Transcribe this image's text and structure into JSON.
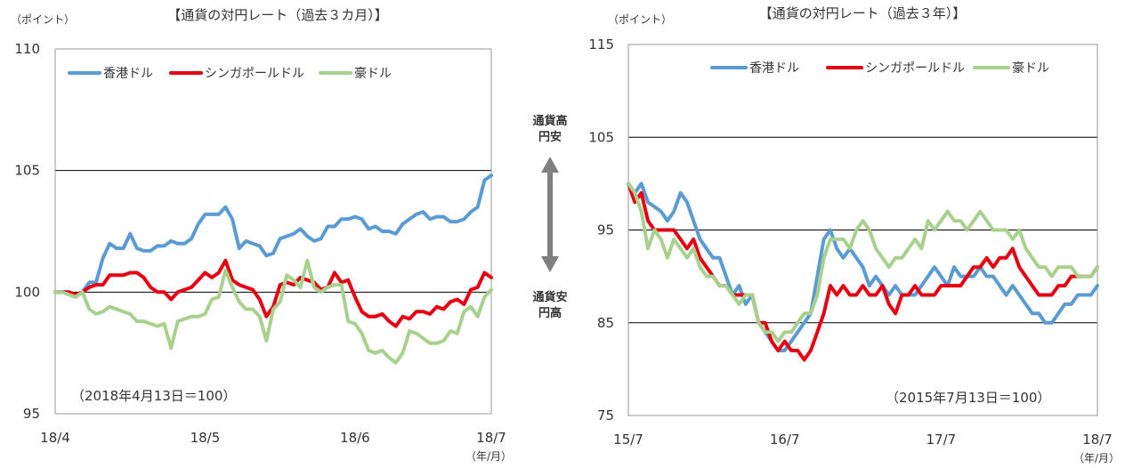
{
  "center": {
    "top_label_line1": "通貨高",
    "top_label_line2": "円安",
    "bottom_label_line1": "通貨安",
    "bottom_label_line2": "円高",
    "arrow_color": "#808080"
  },
  "chart_data": [
    {
      "type": "line",
      "title": "【通貨の対円レート（過去３カ月）】",
      "ylabel": "（ポイント）",
      "unit_label": "（年/月）",
      "annotation": "（2018年4月13日＝100）",
      "xlim": [
        0,
        64
      ],
      "ylim": [
        95,
        110
      ],
      "y_ticks": [
        95,
        100,
        105,
        110
      ],
      "x_ticks": [
        {
          "x": 0,
          "label": "18/4"
        },
        {
          "x": 22,
          "label": "18/5"
        },
        {
          "x": 44,
          "label": "18/6"
        },
        {
          "x": 64,
          "label": "18/7"
        }
      ],
      "grid": "horizontal",
      "legend_position": "top-left",
      "series": [
        {
          "name": "香港ドル",
          "color": "#5b9bd5",
          "values": [
            100.0,
            100.0,
            100.0,
            99.8,
            100.0,
            100.4,
            100.4,
            101.4,
            102.0,
            101.8,
            101.8,
            102.4,
            101.8,
            101.7,
            101.7,
            101.9,
            101.9,
            102.1,
            102.0,
            102.0,
            102.2,
            102.8,
            103.2,
            103.2,
            103.2,
            103.5,
            103.0,
            101.8,
            102.1,
            102.0,
            101.9,
            101.5,
            101.6,
            102.2,
            102.3,
            102.4,
            102.6,
            102.3,
            102.1,
            102.2,
            102.7,
            102.7,
            103.0,
            103.0,
            103.1,
            103.0,
            102.6,
            102.7,
            102.5,
            102.5,
            102.4,
            102.8,
            103.0,
            103.2,
            103.3,
            103.0,
            103.1,
            103.1,
            102.9,
            102.9,
            103.0,
            103.3,
            103.5,
            104.6,
            104.8
          ]
        },
        {
          "name": "シンガポールドル",
          "color": "#e60012",
          "values": [
            100.0,
            100.0,
            100.0,
            99.9,
            100.0,
            100.2,
            100.3,
            100.3,
            100.7,
            100.7,
            100.7,
            100.8,
            100.8,
            100.6,
            100.2,
            100.0,
            100.0,
            99.7,
            100.0,
            100.1,
            100.2,
            100.5,
            100.8,
            100.6,
            100.8,
            101.3,
            100.5,
            100.3,
            100.2,
            100.1,
            99.7,
            99.0,
            99.4,
            100.3,
            100.4,
            100.3,
            100.6,
            100.5,
            100.4,
            100.1,
            100.2,
            100.8,
            100.4,
            100.5,
            99.8,
            99.2,
            99.0,
            99.0,
            99.1,
            98.8,
            98.6,
            99.0,
            98.9,
            99.2,
            99.2,
            99.1,
            99.4,
            99.3,
            99.6,
            99.7,
            99.5,
            100.1,
            100.2,
            100.8,
            100.6
          ]
        },
        {
          "name": "豪ドル",
          "color": "#a9d18e",
          "values": [
            100.0,
            100.0,
            99.9,
            99.8,
            100.0,
            99.3,
            99.1,
            99.2,
            99.4,
            99.3,
            99.2,
            99.1,
            98.8,
            98.8,
            98.7,
            98.6,
            98.7,
            97.7,
            98.8,
            98.9,
            99.0,
            99.0,
            99.1,
            99.7,
            99.8,
            100.9,
            100.2,
            99.6,
            99.3,
            99.3,
            99.0,
            98.0,
            99.3,
            99.6,
            100.7,
            100.5,
            100.2,
            101.3,
            100.2,
            100.0,
            100.2,
            100.3,
            100.3,
            98.8,
            98.7,
            98.3,
            97.6,
            97.5,
            97.6,
            97.3,
            97.1,
            97.5,
            98.4,
            98.3,
            98.1,
            97.9,
            97.9,
            98.0,
            98.4,
            98.3,
            99.2,
            99.4,
            99.0,
            99.8,
            100.1
          ]
        }
      ]
    },
    {
      "type": "line",
      "title": "【通貨の対円レート（過去３年）】",
      "ylabel": "（ポイント）",
      "unit_label": "（年/月）",
      "annotation": "（2015年7月13日＝100）",
      "xlim": [
        0,
        36
      ],
      "ylim": [
        75,
        115
      ],
      "y_ticks": [
        75,
        85,
        95,
        105,
        115
      ],
      "x_ticks": [
        {
          "x": 0,
          "label": "15/7"
        },
        {
          "x": 12,
          "label": "16/7"
        },
        {
          "x": 24,
          "label": "17/7"
        },
        {
          "x": 36,
          "label": "18/7"
        }
      ],
      "grid": "horizontal",
      "legend_position": "top",
      "series": [
        {
          "name": "香港ドル",
          "color": "#5b9bd5",
          "x": [
            0,
            0.5,
            1,
            1.5,
            2,
            2.5,
            3,
            3.5,
            4,
            4.5,
            5,
            5.5,
            6,
            6.5,
            7,
            7.5,
            8,
            8.5,
            9,
            9.5,
            10,
            10.5,
            11,
            11.5,
            12,
            12.5,
            13,
            13.5,
            14,
            14.5,
            15,
            15.5,
            16,
            16.5,
            17,
            17.5,
            18,
            18.5,
            19,
            19.5,
            20,
            20.5,
            21,
            21.5,
            22,
            22.5,
            23,
            23.5,
            24,
            24.5,
            25,
            25.5,
            26,
            26.5,
            27,
            27.5,
            28,
            28.5,
            29,
            29.5,
            30,
            30.5,
            31,
            31.5,
            32,
            32.5,
            33,
            33.5,
            34,
            34.5,
            35,
            35.5,
            36
          ],
          "y": [
            100,
            99,
            100,
            98,
            97.5,
            97,
            96,
            97,
            99,
            98,
            96,
            94,
            93,
            92,
            92,
            90,
            88,
            89,
            87,
            88,
            85,
            84,
            83,
            82,
            82,
            83,
            84,
            85,
            86,
            90,
            94,
            95,
            93,
            92,
            93,
            92,
            91,
            89,
            90,
            89,
            88,
            89,
            88,
            88,
            88,
            89,
            90,
            91,
            90,
            89,
            91,
            90,
            90,
            90,
            91,
            90,
            90,
            89,
            88,
            89,
            88,
            87,
            86,
            86,
            85,
            85,
            86,
            87,
            87,
            88,
            88,
            88,
            89
          ]
        },
        {
          "name": "シンガポールドル",
          "color": "#e60012",
          "x": [
            0,
            0.5,
            1,
            1.5,
            2,
            2.5,
            3,
            3.5,
            4,
            4.5,
            5,
            5.5,
            6,
            6.5,
            7,
            7.5,
            8,
            8.5,
            9,
            9.5,
            10,
            10.5,
            11,
            11.5,
            12,
            12.5,
            13,
            13.5,
            14,
            14.5,
            15,
            15.5,
            16,
            16.5,
            17,
            17.5,
            18,
            18.5,
            19,
            19.5,
            20,
            20.5,
            21,
            21.5,
            22,
            22.5,
            23,
            23.5,
            24,
            24.5,
            25,
            25.5,
            26,
            26.5,
            27,
            27.5,
            28,
            28.5,
            29,
            29.5,
            30,
            30.5,
            31,
            31.5,
            32,
            32.5,
            33,
            33.5,
            34,
            34.5,
            35,
            35.5,
            36
          ],
          "y": [
            100,
            98,
            99,
            96,
            95,
            95,
            95,
            95,
            94,
            93,
            94,
            92,
            91,
            90,
            89,
            89,
            88,
            88,
            88,
            88,
            85,
            85,
            83,
            82,
            83,
            82,
            82,
            81,
            82,
            84,
            86,
            89,
            88,
            89,
            88,
            88,
            89,
            88,
            88,
            89,
            87,
            86,
            88,
            88,
            89,
            88,
            88,
            88,
            89,
            89,
            89,
            89,
            90,
            91,
            91,
            92,
            91,
            92,
            92,
            93,
            91,
            90,
            89,
            88,
            88,
            88,
            89,
            89,
            90,
            90,
            90,
            90,
            91
          ]
        },
        {
          "name": "豪ドル",
          "color": "#a9d18e",
          "x": [
            0,
            0.5,
            1,
            1.5,
            2,
            2.5,
            3,
            3.5,
            4,
            4.5,
            5,
            5.5,
            6,
            6.5,
            7,
            7.5,
            8,
            8.5,
            9,
            9.5,
            10,
            10.5,
            11,
            11.5,
            12,
            12.5,
            13,
            13.5,
            14,
            14.5,
            15,
            15.5,
            16,
            16.5,
            17,
            17.5,
            18,
            18.5,
            19,
            19.5,
            20,
            20.5,
            21,
            21.5,
            22,
            22.5,
            23,
            23.5,
            24,
            24.5,
            25,
            25.5,
            26,
            26.5,
            27,
            27.5,
            28,
            28.5,
            29,
            29.5,
            30,
            30.5,
            31,
            31.5,
            32,
            32.5,
            33,
            33.5,
            34,
            34.5,
            35,
            35.5,
            36
          ],
          "y": [
            100,
            99,
            97,
            93,
            95,
            94,
            92,
            94,
            93,
            92,
            93,
            91,
            90,
            90,
            89,
            89,
            88,
            87,
            88,
            88,
            85,
            84,
            84,
            83,
            84,
            84,
            85,
            86,
            86,
            88,
            92,
            94,
            94,
            94,
            93,
            95,
            96,
            95,
            93,
            92,
            91,
            92,
            92,
            93,
            94,
            93,
            96,
            95,
            96,
            97,
            96,
            96,
            95,
            96,
            97,
            96,
            95,
            95,
            95,
            94,
            95,
            93,
            92,
            91,
            91,
            90,
            91,
            91,
            91,
            90,
            90,
            90,
            91
          ]
        }
      ]
    }
  ]
}
